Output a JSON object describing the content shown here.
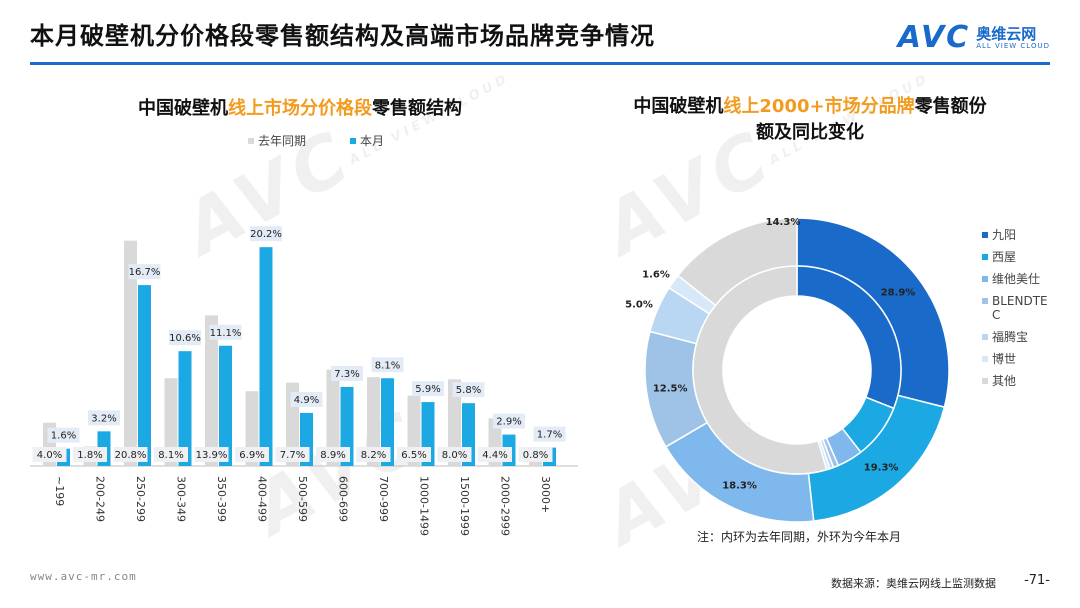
{
  "page": {
    "title": "本月破壁机分价格段零售额结构及高端市场品牌竞争情况",
    "logo_mark": "AVC",
    "logo_cn": "奥维云网",
    "logo_en": "ALL VIEW CLOUD",
    "footer_url": "www.avc-mr.com",
    "footer_source": "数据来源：奥维云网线上监测数据",
    "page_number": "-71-",
    "note": "注：内环为去年同期，外环为今年本月",
    "colors": {
      "accent": "#1a6ac9",
      "highlight": "#f29b1f",
      "last_year": "#d9d9d9",
      "this_month": "#1ba8e3"
    }
  },
  "left_chart_title": {
    "pre": "中国破壁机",
    "hl": "线上市场分价格段",
    "post": "零售额结构"
  },
  "right_chart_title": {
    "line1_pre": "中国破壁机",
    "line1_hl": "线上2000+市场分品牌",
    "line1_post": "零售额份",
    "line2": "额及同比变化"
  },
  "chart_data": [
    {
      "type": "bar",
      "categories": [
        "~199",
        "200-249",
        "250-299",
        "300-349",
        "350-399",
        "400-499",
        "500-599",
        "600-699",
        "700-999",
        "1000-1499",
        "1500-1999",
        "2000-2999",
        "3000+"
      ],
      "series": [
        {
          "name": "去年同期",
          "color": "#d9d9d9",
          "values": [
            4.0,
            1.8,
            20.8,
            8.1,
            13.9,
            6.9,
            7.7,
            8.9,
            8.2,
            6.5,
            8.0,
            4.4,
            0.8
          ],
          "labels": [
            "4.0%",
            "1.8%",
            "20.8%",
            "8.1%",
            "13.9%",
            "6.9%",
            "7.7%",
            "8.9%",
            "8.2%",
            "6.5%",
            "8.0%",
            "4.4%",
            "0.8%"
          ]
        },
        {
          "name": "本月",
          "color": "#1ba8e3",
          "values": [
            1.6,
            3.2,
            16.7,
            10.6,
            11.1,
            20.2,
            4.9,
            7.3,
            8.1,
            5.9,
            5.8,
            2.9,
            1.7
          ],
          "labels": [
            "1.6%",
            "3.2%",
            "16.7%",
            "10.6%",
            "11.1%",
            "20.2%",
            "4.9%",
            "7.3%",
            "8.1%",
            "5.9%",
            "5.8%",
            "2.9%",
            "1.7%"
          ]
        }
      ],
      "ylim": [
        0,
        24
      ],
      "legend": "top"
    },
    {
      "type": "pie",
      "subtype": "donut",
      "categories": [
        "九阳",
        "西屋",
        "维他美仕",
        "BLENDTEC",
        "福腾宝",
        "博世",
        "其他"
      ],
      "colors": [
        "#1a6ac9",
        "#1ba8e3",
        "#7fb8ec",
        "#9fc3e6",
        "#b9d6f2",
        "#d7e8f8",
        "#d9d9d9"
      ],
      "outer_ring": {
        "name": "本月",
        "values": [
          28.9,
          19.3,
          18.3,
          12.5,
          5.0,
          1.6,
          14.3
        ],
        "labels": [
          "28.9%",
          "19.3%",
          "18.3%",
          "12.5%",
          "5.0%",
          "1.6%",
          "14.3%"
        ]
      },
      "inner_ring": {
        "name": "去年同期",
        "values": [
          31.0,
          8.5,
          4.0,
          0.8,
          0.6,
          0.5,
          54.6
        ]
      },
      "legend": "right"
    }
  ]
}
